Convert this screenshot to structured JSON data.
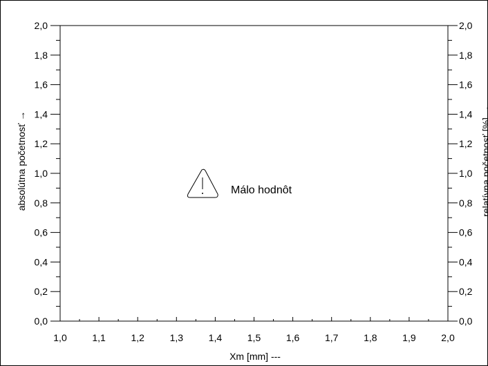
{
  "chart_data": {
    "type": "bar",
    "title": "",
    "xlabel": "Xm [mm]  ---",
    "ylabel": "absolútna početnosť →",
    "y2label": "relatívna početnosť  [%] →",
    "xlim": [
      1.0,
      2.0
    ],
    "ylim": [
      0.0,
      2.0
    ],
    "y2lim": [
      0.0,
      2.0
    ],
    "x_ticks": [
      "1,0",
      "1,1",
      "1,2",
      "1,3",
      "1,4",
      "1,5",
      "1,6",
      "1,7",
      "1,8",
      "1,9",
      "2,0"
    ],
    "y_ticks": [
      "0,0",
      "0,2",
      "0,4",
      "0,6",
      "0,8",
      "1,0",
      "1,2",
      "1,4",
      "1,6",
      "1,8",
      "2,0"
    ],
    "y2_ticks": [
      "0,0",
      "0,2",
      "0,4",
      "0,6",
      "0,8",
      "1,0",
      "1,2",
      "1,4",
      "1,6",
      "1,8",
      "2,0"
    ],
    "categories": [],
    "values": [],
    "grid": false,
    "message": "Málo hodnôt",
    "message_icon": "warning-triangle-icon"
  }
}
